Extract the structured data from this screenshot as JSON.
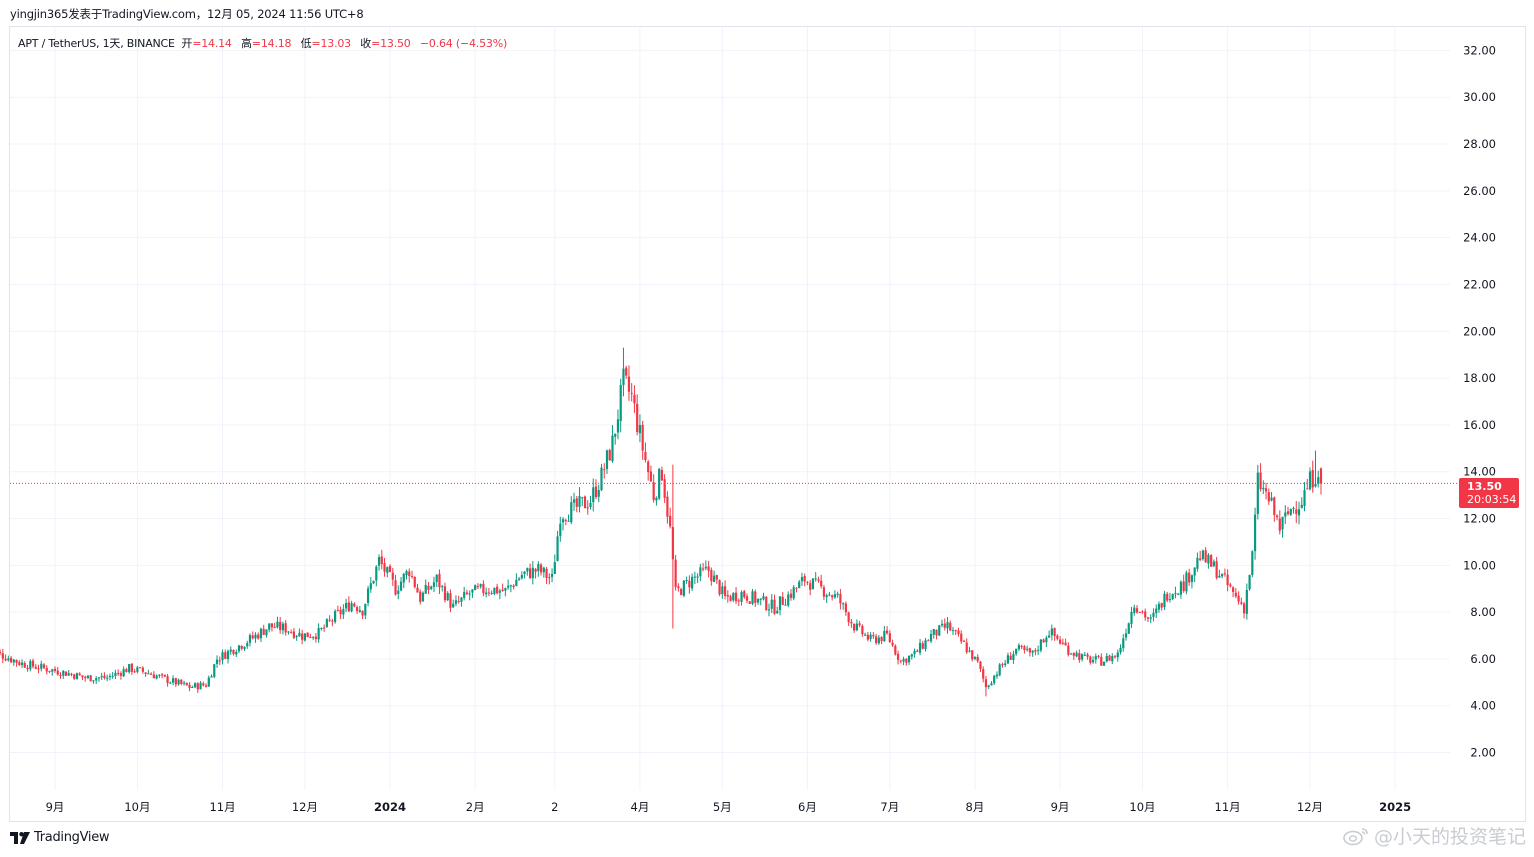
{
  "header": {
    "publish_line": "yingjin365发表于TradingView.com，12月 05, 2024 11:56 UTC+8"
  },
  "legend": {
    "symbol": "APT / TetherUS, 1天, BINANCE",
    "open_label": "开",
    "open": "=14.14",
    "high_label": "高",
    "high": "=14.18",
    "low_label": "低",
    "low": "=13.03",
    "close_label": "收",
    "close": "=13.50",
    "change": "−0.64 (−4.53%)"
  },
  "price_tag": {
    "price": "13.50",
    "countdown": "20:03:54"
  },
  "footer": {
    "brand": "TradingView"
  },
  "watermark": {
    "text": "@小天的投资笔记"
  },
  "colors": {
    "up": "#089981",
    "down": "#f23645",
    "grid": "#f0f3fa",
    "axis_text": "#131722",
    "last_price_line": "#f23645"
  },
  "chart_data": {
    "type": "candlestick",
    "title": "APT / TetherUS, 1天, BINANCE",
    "y_axis": {
      "side": "right",
      "ylim": [
        0.4,
        33.0
      ],
      "ticks": [
        "32.00",
        "30.00",
        "28.00",
        "26.00",
        "24.00",
        "22.00",
        "20.00",
        "18.00",
        "16.00",
        "14.00",
        "12.00",
        "10.00",
        "8.00",
        "6.00",
        "4.00",
        "2.00"
      ]
    },
    "x_axis": {
      "ticks": [
        {
          "label": "9月",
          "date": "2023-09-01",
          "bold": false
        },
        {
          "label": "10月",
          "date": "2023-10-01",
          "bold": false
        },
        {
          "label": "11月",
          "date": "2023-11-01",
          "bold": false
        },
        {
          "label": "12月",
          "date": "2023-12-01",
          "bold": false
        },
        {
          "label": "2024",
          "date": "2024-01-01",
          "bold": true
        },
        {
          "label": "2月",
          "date": "2024-02-01",
          "bold": false
        },
        {
          "label": "2",
          "date": "2024-03-01",
          "bold": false
        },
        {
          "label": "4月",
          "date": "2024-04-01",
          "bold": false
        },
        {
          "label": "5月",
          "date": "2024-05-01",
          "bold": false
        },
        {
          "label": "6月",
          "date": "2024-06-01",
          "bold": false
        },
        {
          "label": "7月",
          "date": "2024-07-01",
          "bold": false
        },
        {
          "label": "8月",
          "date": "2024-08-01",
          "bold": false
        },
        {
          "label": "9月",
          "date": "2024-09-01",
          "bold": false
        },
        {
          "label": "10月",
          "date": "2024-10-01",
          "bold": false
        },
        {
          "label": "11月",
          "date": "2024-11-01",
          "bold": false
        },
        {
          "label": "12月",
          "date": "2024-12-01",
          "bold": false
        },
        {
          "label": "2025",
          "date": "2025-01-01",
          "bold": true
        }
      ]
    },
    "grid": true,
    "last_price": 13.5,
    "start_date": "2023-08-08",
    "end_date": "2024-12-05",
    "close_anchors": [
      [
        "2023-08-08",
        6.4
      ],
      [
        "2023-08-14",
        6.1
      ],
      [
        "2023-08-20",
        5.8
      ],
      [
        "2023-08-28",
        5.6
      ],
      [
        "2023-09-05",
        5.4
      ],
      [
        "2023-09-12",
        5.2
      ],
      [
        "2023-09-20",
        5.2
      ],
      [
        "2023-09-28",
        5.6
      ],
      [
        "2023-10-05",
        5.4
      ],
      [
        "2023-10-12",
        5.1
      ],
      [
        "2023-10-20",
        4.8
      ],
      [
        "2023-10-26",
        4.9
      ],
      [
        "2023-10-30",
        6.0
      ],
      [
        "2023-11-06",
        6.5
      ],
      [
        "2023-11-12",
        6.9
      ],
      [
        "2023-11-18",
        7.4
      ],
      [
        "2023-11-24",
        7.3
      ],
      [
        "2023-11-30",
        7.0
      ],
      [
        "2023-12-06",
        7.1
      ],
      [
        "2023-12-12",
        7.8
      ],
      [
        "2023-12-18",
        8.4
      ],
      [
        "2023-12-22",
        8.1
      ],
      [
        "2023-12-28",
        10.2
      ],
      [
        "2024-01-03",
        9.0
      ],
      [
        "2024-01-08",
        9.8
      ],
      [
        "2024-01-12",
        8.6
      ],
      [
        "2024-01-18",
        9.4
      ],
      [
        "2024-01-24",
        8.2
      ],
      [
        "2024-01-30",
        8.8
      ],
      [
        "2024-02-06",
        9.0
      ],
      [
        "2024-02-12",
        8.9
      ],
      [
        "2024-02-18",
        9.6
      ],
      [
        "2024-02-24",
        9.8
      ],
      [
        "2024-02-29",
        9.4
      ],
      [
        "2024-03-03",
        12.2
      ],
      [
        "2024-03-08",
        12.4
      ],
      [
        "2024-03-14",
        12.8
      ],
      [
        "2024-03-18",
        13.8
      ],
      [
        "2024-03-22",
        15.2
      ],
      [
        "2024-03-26",
        17.8
      ],
      [
        "2024-03-29",
        17.2
      ],
      [
        "2024-04-02",
        15.0
      ],
      [
        "2024-04-06",
        13.0
      ],
      [
        "2024-04-09",
        14.0
      ],
      [
        "2024-04-12",
        11.5
      ],
      [
        "2024-04-14",
        8.8
      ],
      [
        "2024-04-20",
        9.4
      ],
      [
        "2024-04-26",
        9.8
      ],
      [
        "2024-05-02",
        8.6
      ],
      [
        "2024-05-08",
        8.8
      ],
      [
        "2024-05-14",
        8.5
      ],
      [
        "2024-05-20",
        8.2
      ],
      [
        "2024-05-26",
        8.8
      ],
      [
        "2024-05-31",
        9.4
      ],
      [
        "2024-06-06",
        9.0
      ],
      [
        "2024-06-12",
        8.6
      ],
      [
        "2024-06-18",
        7.4
      ],
      [
        "2024-06-24",
        6.8
      ],
      [
        "2024-06-30",
        7.0
      ],
      [
        "2024-07-05",
        5.9
      ],
      [
        "2024-07-10",
        6.2
      ],
      [
        "2024-07-16",
        7.0
      ],
      [
        "2024-07-22",
        7.4
      ],
      [
        "2024-07-28",
        6.6
      ],
      [
        "2024-08-02",
        5.8
      ],
      [
        "2024-08-05",
        4.8
      ],
      [
        "2024-08-10",
        5.6
      ],
      [
        "2024-08-16",
        6.4
      ],
      [
        "2024-08-22",
        6.2
      ],
      [
        "2024-08-28",
        7.2
      ],
      [
        "2024-09-04",
        6.4
      ],
      [
        "2024-09-10",
        6.0
      ],
      [
        "2024-09-16",
        5.9
      ],
      [
        "2024-09-22",
        6.2
      ],
      [
        "2024-09-28",
        8.4
      ],
      [
        "2024-10-04",
        7.6
      ],
      [
        "2024-10-10",
        8.8
      ],
      [
        "2024-10-16",
        9.2
      ],
      [
        "2024-10-22",
        10.4
      ],
      [
        "2024-10-28",
        9.8
      ],
      [
        "2024-11-03",
        8.8
      ],
      [
        "2024-11-07",
        8.2
      ],
      [
        "2024-11-10",
        10.4
      ],
      [
        "2024-11-12",
        13.6
      ],
      [
        "2024-11-16",
        12.8
      ],
      [
        "2024-11-20",
        11.6
      ],
      [
        "2024-11-24",
        12.4
      ],
      [
        "2024-11-28",
        12.8
      ],
      [
        "2024-12-01",
        13.6
      ],
      [
        "2024-12-04",
        14.14
      ],
      [
        "2024-12-05",
        13.5
      ]
    ],
    "notable_highs": [
      [
        "2024-03-26",
        19.3
      ],
      [
        "2024-04-13",
        14.3
      ],
      [
        "2024-12-03",
        14.9
      ]
    ],
    "notable_lows": [
      [
        "2024-04-13",
        7.3
      ],
      [
        "2024-08-05",
        4.4
      ]
    ]
  }
}
